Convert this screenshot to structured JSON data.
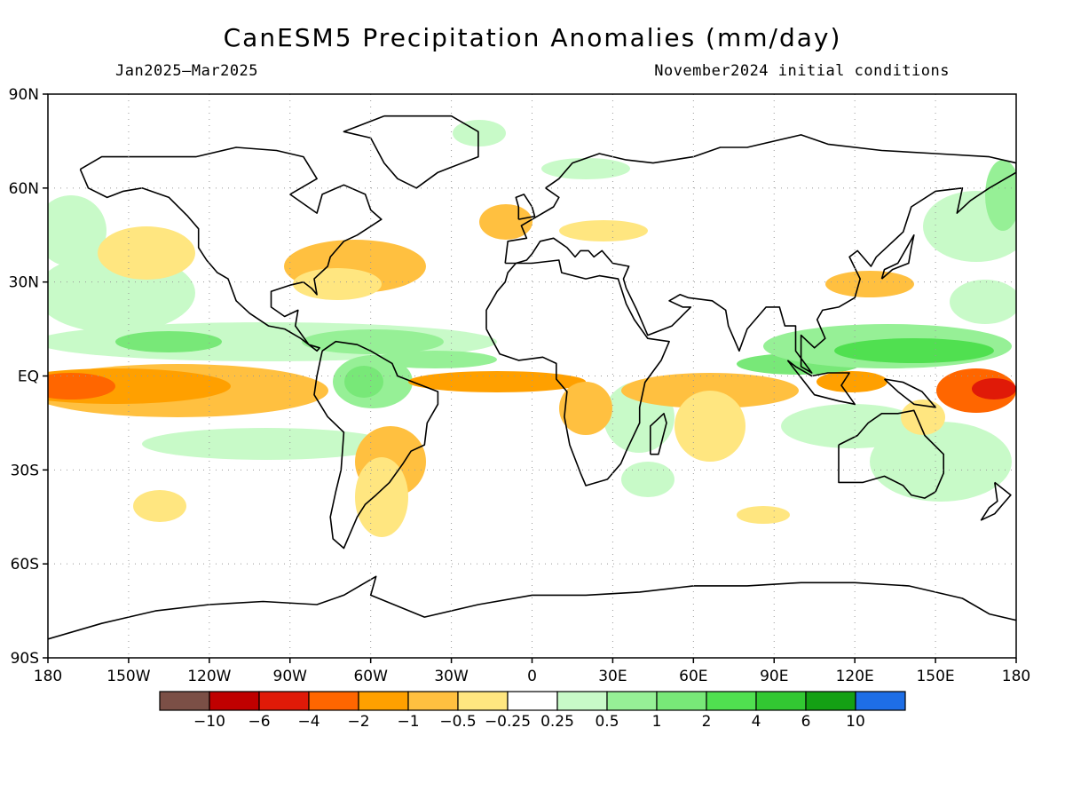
{
  "title": "CanESM5 Precipitation Anomalies (mm/day)",
  "period": "Jan2025—Mar2025",
  "init": "November2024 initial conditions",
  "lon_ticks": [
    "180",
    "150W",
    "120W",
    "90W",
    "60W",
    "30W",
    "0",
    "30E",
    "60E",
    "90E",
    "120E",
    "150E",
    "180"
  ],
  "lat_ticks": [
    "90N",
    "60N",
    "30N",
    "EQ",
    "30S",
    "60S",
    "90S"
  ],
  "colorbar": {
    "colors": [
      "#7b4f46",
      "#c00000",
      "#e01a08",
      "#ff6600",
      "#ffa000",
      "#ffc040",
      "#ffe680",
      "#ffffff",
      "#c8fac8",
      "#96f096",
      "#78e878",
      "#50e050",
      "#32c832",
      "#14a014",
      "#1e6ee6"
    ],
    "labels": [
      "−10",
      "−6",
      "−4",
      "−2",
      "−1",
      "−0.5",
      "−0.25",
      "0.25",
      "0.5",
      "1",
      "2",
      "4",
      "6",
      "10"
    ]
  },
  "anomaly_colors": {
    "dry1": "#ffe680",
    "dry2": "#ffc040",
    "dry3": "#ffa000",
    "dry4": "#ff6600",
    "dry5": "#e01a08",
    "wet1": "#c8fac8",
    "wet2": "#96f096",
    "wet3": "#78e878",
    "wet4": "#50e050"
  }
}
